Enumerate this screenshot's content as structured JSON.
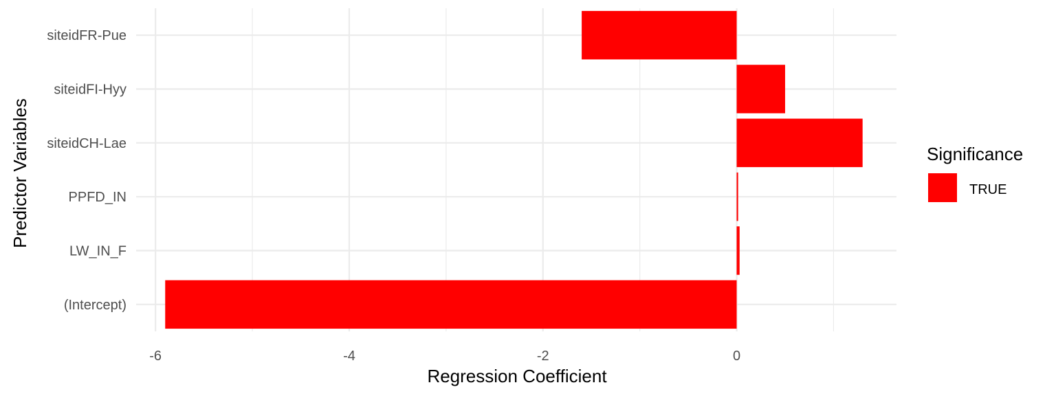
{
  "chart_data": {
    "type": "bar",
    "orientation": "horizontal",
    "categories": [
      "(Intercept)",
      "LW_IN_F",
      "PPFD_IN",
      "siteidCH-Lae",
      "siteidFI-Hyy",
      "siteidFR-Pue"
    ],
    "values": [
      -5.9,
      0.03,
      0.015,
      1.3,
      0.5,
      -1.6
    ],
    "significance": [
      "TRUE",
      "TRUE",
      "TRUE",
      "TRUE",
      "TRUE",
      "TRUE"
    ],
    "xlabel": "Regression Coefficient",
    "ylabel": "Predictor Variables",
    "xlim": [
      -6.2,
      1.65
    ],
    "x_ticks": [
      -6,
      -4,
      -2,
      0
    ],
    "x_tick_labels": [
      "-6",
      "-4",
      "-2",
      "0"
    ],
    "grid": true,
    "legend": {
      "title": "Significance",
      "position": "right",
      "entries": [
        {
          "label": "TRUE",
          "color": "#ff0000"
        }
      ]
    },
    "colors": {
      "bar": "#ff0000",
      "grid": "#ebebeb",
      "background": "#ffffff"
    }
  }
}
